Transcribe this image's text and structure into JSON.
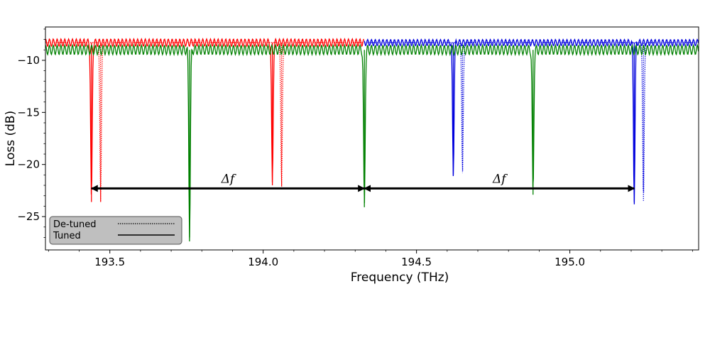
{
  "chart_data": {
    "type": "line",
    "title": "",
    "xlabel": "Frequency (THz)",
    "ylabel": "Loss (dB)",
    "xlim": [
      193.29,
      195.42
    ],
    "ylim": [
      -28.2,
      -6.8
    ],
    "xticks": [
      193.5,
      194.0,
      194.5,
      195.0
    ],
    "xtick_labels": [
      "193.5",
      "194.0",
      "194.5",
      "195.0"
    ],
    "yticks": [
      -10,
      -15,
      -20,
      -25
    ],
    "ytick_labels": [
      "−10",
      "−15",
      "−20",
      "−25"
    ],
    "grid": false,
    "legend": {
      "placement": "bottom-left",
      "entries": [
        {
          "label": "De-tuned",
          "style": "dotted"
        },
        {
          "label": "Tuned",
          "style": "solid"
        }
      ]
    },
    "colors": {
      "red": "#ff0000",
      "blue": "#0000dd",
      "green": "#008000",
      "legend_bg": "#bfbfbf"
    },
    "series": [
      {
        "color": "red",
        "range": [
          193.29,
          194.33
        ],
        "baseline": -8.3,
        "ripple": 0.35,
        "dashed": false,
        "dips": [
          {
            "f": 193.44,
            "depth": -23.6
          },
          {
            "f": 194.03,
            "depth": -22.0
          }
        ]
      },
      {
        "color": "red",
        "range": [
          193.29,
          194.33
        ],
        "baseline": -8.3,
        "ripple": 0.0,
        "dashed": true,
        "dips": [
          {
            "f": 193.47,
            "depth": -23.6
          },
          {
            "f": 194.06,
            "depth": -22.3
          }
        ]
      },
      {
        "color": "blue",
        "range": [
          194.33,
          195.42
        ],
        "baseline": -8.3,
        "ripple": 0.3,
        "dashed": false,
        "dips": [
          {
            "f": 194.62,
            "depth": -21.0
          },
          {
            "f": 195.21,
            "depth": -23.6
          }
        ]
      },
      {
        "color": "blue",
        "range": [
          194.33,
          195.42
        ],
        "baseline": -8.3,
        "ripple": 0.0,
        "dashed": true,
        "dips": [
          {
            "f": 194.65,
            "depth": -20.8
          },
          {
            "f": 195.24,
            "depth": -23.5
          }
        ]
      },
      {
        "color": "green",
        "range": [
          193.29,
          195.42
        ],
        "baseline": -9.0,
        "ripple": 0.45,
        "dashed": false,
        "dips": [
          {
            "f": 193.76,
            "depth": -27.0
          },
          {
            "f": 194.33,
            "depth": -24.1
          },
          {
            "f": 194.88,
            "depth": -22.9
          }
        ]
      }
    ],
    "annotations": [
      {
        "text": "Δf",
        "from": 193.44,
        "to": 194.33,
        "y": -22.3
      },
      {
        "text": "Δf",
        "from": 194.33,
        "to": 195.21,
        "y": -22.3
      }
    ]
  }
}
